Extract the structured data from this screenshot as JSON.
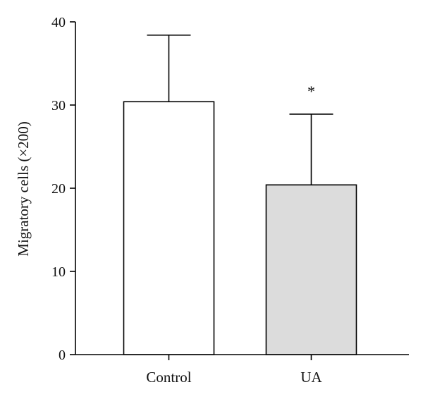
{
  "chart_data": {
    "type": "bar",
    "title": "",
    "xlabel": "",
    "ylabel": "Migratory cells (×200)",
    "ylim": [
      0,
      40
    ],
    "yticks": [
      0,
      10,
      20,
      30,
      40
    ],
    "categories": [
      "Control",
      "UA"
    ],
    "values": [
      30.4,
      20.4
    ],
    "error_upper": [
      8.0,
      8.5
    ],
    "significance": [
      "",
      "*"
    ],
    "grid": false,
    "legend": "none",
    "bar_colors": [
      "#ffffff",
      "#dcdcdc"
    ],
    "edge_color": "#000000"
  }
}
